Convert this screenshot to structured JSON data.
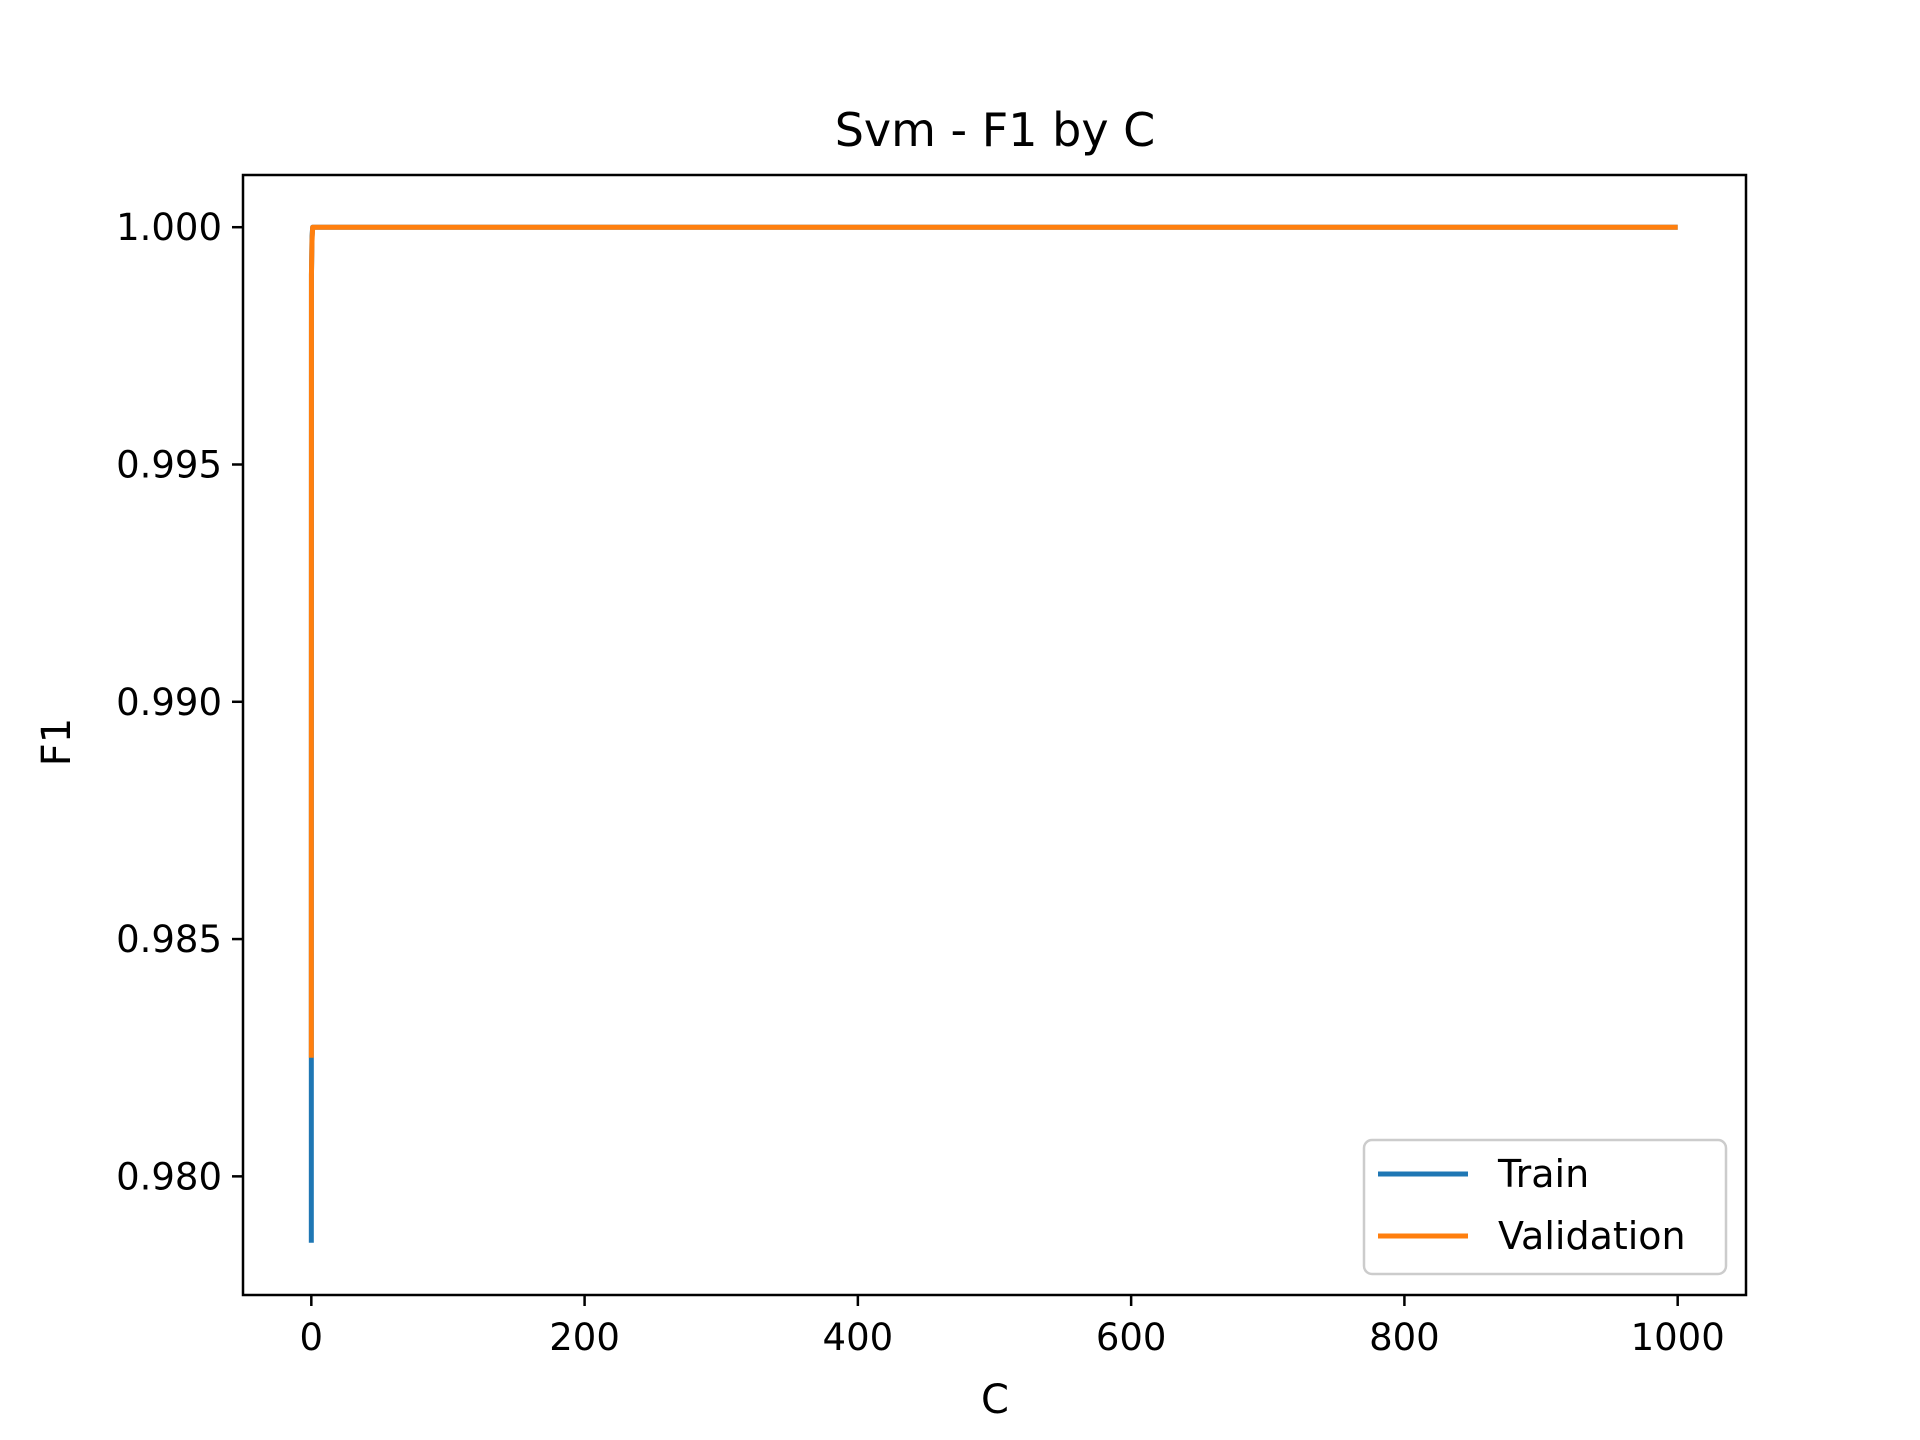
{
  "chart_data": {
    "type": "line",
    "title": "Svm - F1 by C",
    "xlabel": "C",
    "ylabel": "F1",
    "xlim": [
      -50,
      1050
    ],
    "ylim": [
      0.9775,
      1.0011
    ],
    "xticks": [
      0,
      200,
      400,
      600,
      800,
      1000
    ],
    "xtick_labels": [
      "0",
      "200",
      "400",
      "600",
      "800",
      "1000"
    ],
    "yticks": [
      0.98,
      0.985,
      0.99,
      0.995,
      1.0
    ],
    "ytick_labels": [
      "0.980",
      "0.985",
      "0.990",
      "0.995",
      "1.000"
    ],
    "grid": false,
    "legend_position": "lower-right",
    "series": [
      {
        "name": "Train",
        "color": "#1f77b4",
        "x": [
          0.001,
          0.01,
          0.1,
          0.5,
          1,
          2,
          5,
          10,
          50,
          100,
          500,
          1000
        ],
        "y": [
          0.9786,
          0.9825,
          0.999,
          0.9998,
          1.0,
          1.0,
          1.0,
          1.0,
          1.0,
          1.0,
          1.0,
          1.0
        ]
      },
      {
        "name": "Validation",
        "color": "#ff7f0e",
        "x": [
          0.001,
          0.01,
          0.1,
          0.5,
          1,
          2,
          5,
          10,
          50,
          100,
          500,
          1000
        ],
        "y": [
          0.9825,
          0.9882,
          0.999,
          0.9997,
          1.0,
          1.0,
          1.0,
          1.0,
          1.0,
          1.0,
          1.0,
          1.0
        ]
      }
    ]
  }
}
